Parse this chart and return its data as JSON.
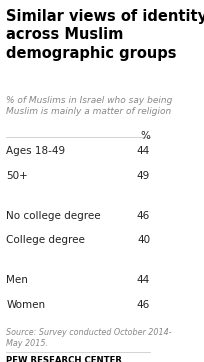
{
  "title": "Similar views of identity\nacross Muslim\ndemographic groups",
  "subtitle": "% of Muslims in Israel who say being\nMuslim is mainly a matter of religion",
  "col_header": "%",
  "rows": [
    {
      "label": "Ages 18-49",
      "value": 44,
      "group_break_before": false
    },
    {
      "label": "50+",
      "value": 49,
      "group_break_before": false
    },
    {
      "label": "No college degree",
      "value": 46,
      "group_break_before": true
    },
    {
      "label": "College degree",
      "value": 40,
      "group_break_before": false
    },
    {
      "label": "Men",
      "value": 44,
      "group_break_before": true
    },
    {
      "label": "Women",
      "value": 46,
      "group_break_before": false
    }
  ],
  "source": "Source: Survey conducted October 2014-\nMay 2015.",
  "footer": "PEW RESEARCH CENTER",
  "bg_color": "#ffffff",
  "title_color": "#000000",
  "subtitle_color": "#888888",
  "label_color": "#222222",
  "value_color": "#222222",
  "source_color": "#888888",
  "footer_color": "#000000",
  "separator_color": "#cccccc"
}
